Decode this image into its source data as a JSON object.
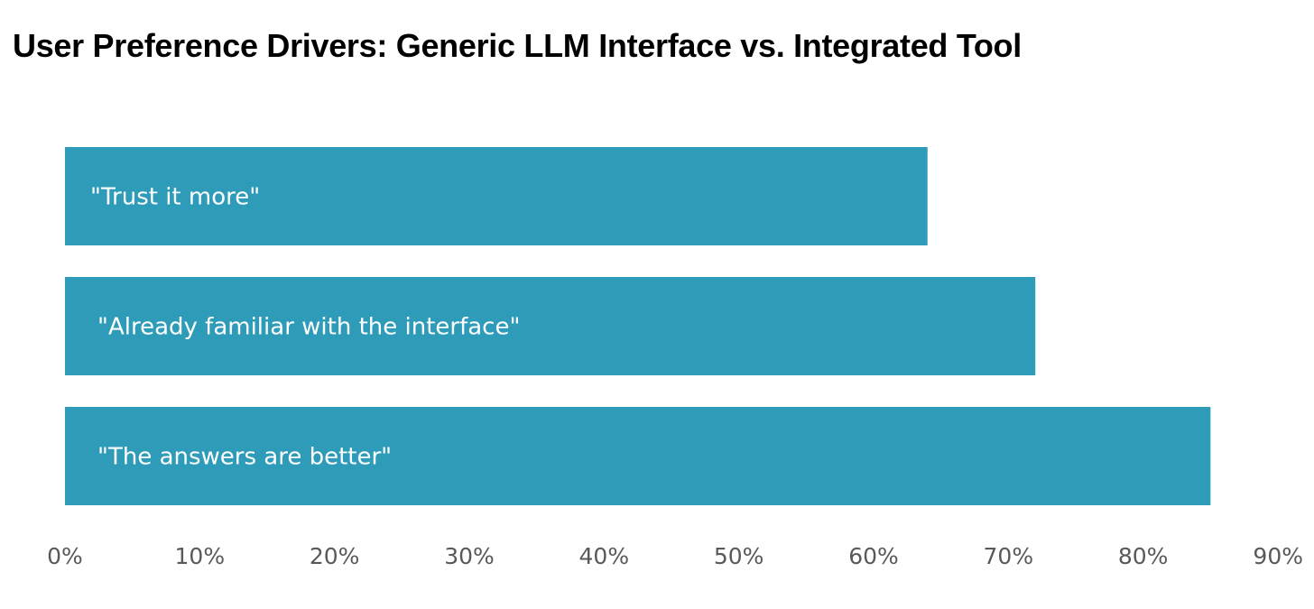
{
  "chart_data": {
    "type": "bar",
    "orientation": "horizontal",
    "title": "User Preference Drivers: Generic LLM Interface vs. Integrated Tool",
    "xlabel": "",
    "ylabel": "",
    "categories": [
      "\"Trust it more\"",
      "\"Already familiar with the interface\"",
      "\"The answers are better\""
    ],
    "values": [
      64,
      72,
      85
    ],
    "xlim": [
      0,
      90
    ],
    "x_ticks": [
      0,
      10,
      20,
      30,
      40,
      50,
      60,
      70,
      80,
      90
    ],
    "tick_format": "percent",
    "grid": false,
    "legend": "none",
    "bar_color": "#2e9cb8",
    "labels_inside_bars": true
  }
}
